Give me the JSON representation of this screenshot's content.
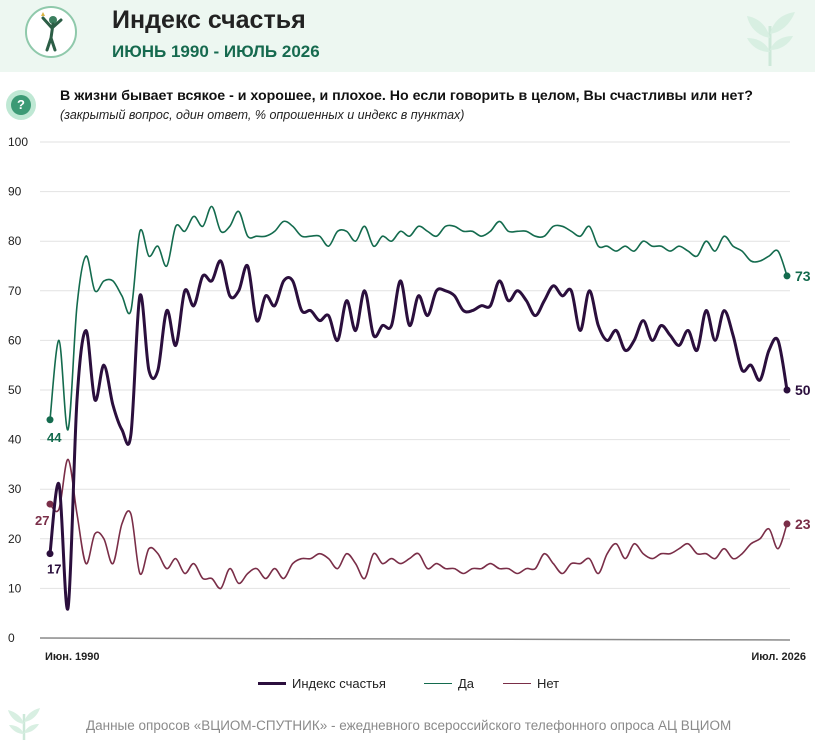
{
  "header": {
    "title": "Индекс счастья",
    "subtitle": "ИЮНЬ 1990 - ИЮЛЬ 2026"
  },
  "question": {
    "icon": "question-icon",
    "text": "В жизни бывает всякое - и хорошее, и плохое. Но если говорить в целом, Вы счастливы  или нет?",
    "note": "(закрытый вопрос, один ответ, % опрошенных и индекс в пунктах)"
  },
  "colors": {
    "index": "#2b0f3d",
    "yes": "#146b4e",
    "no": "#7a2e48",
    "header_bg": "#edf7f1"
  },
  "chart_data": {
    "type": "line",
    "x_start_label": "Июн. 1990",
    "x_end_label": "Июл. 2026",
    "ylim": [
      0,
      100
    ],
    "yticks": [
      0,
      10,
      20,
      30,
      40,
      50,
      60,
      70,
      80,
      90,
      100
    ],
    "grid": true,
    "legend_position": "bottom",
    "series": [
      {
        "name": "Индекс счастья",
        "key": "index",
        "color": "#2b0f3d",
        "start_label": "17",
        "end_label": "50",
        "values": [
          17,
          31,
          6,
          48,
          62,
          48,
          55,
          47,
          42,
          41,
          69,
          54,
          54,
          66,
          59,
          70,
          67,
          73,
          72,
          76,
          69,
          70,
          75,
          64,
          69,
          67,
          72,
          72,
          66,
          66,
          64,
          65,
          60,
          68,
          62,
          70,
          61,
          63,
          63,
          72,
          63,
          69,
          65,
          70,
          70,
          69,
          66,
          66,
          67,
          67,
          72,
          68,
          70,
          68,
          65,
          68,
          71,
          69,
          70,
          62,
          70,
          63,
          60,
          62,
          58,
          60,
          64,
          60,
          63,
          61,
          59,
          62,
          58,
          66,
          60,
          66,
          61,
          54,
          55,
          52,
          58,
          60,
          50
        ]
      },
      {
        "name": "Да",
        "key": "yes",
        "color": "#146b4e",
        "start_label": "44",
        "end_label": "73",
        "values": [
          44,
          60,
          42,
          67,
          77,
          70,
          72,
          72,
          69,
          66,
          82,
          77,
          79,
          75,
          83,
          82,
          85,
          83,
          87,
          82,
          83,
          86,
          81,
          81,
          81,
          82,
          84,
          83,
          81,
          81,
          81,
          79,
          82,
          82,
          80,
          83,
          79,
          81,
          80,
          82,
          81,
          83,
          82,
          81,
          83,
          83,
          82,
          82,
          81,
          82,
          84,
          82,
          82,
          82,
          81,
          81,
          83,
          83,
          82,
          81,
          83,
          79,
          79,
          78,
          79,
          78,
          80,
          79,
          79,
          78,
          79,
          78,
          77,
          80,
          78,
          81,
          79,
          78,
          76,
          76,
          77,
          78,
          73
        ]
      },
      {
        "name": "Нет",
        "key": "no",
        "color": "#7a2e48",
        "start_label": "27",
        "end_label": "23",
        "values": [
          27,
          26,
          36,
          25,
          15,
          21,
          20,
          15,
          23,
          25,
          13,
          18,
          17,
          14,
          16,
          13,
          15,
          12,
          12,
          10,
          14,
          11,
          13,
          14,
          12,
          14,
          12,
          15,
          16,
          16,
          17,
          16,
          14,
          17,
          15,
          12,
          17,
          15,
          16,
          15,
          16,
          17,
          14,
          15,
          14,
          14,
          13,
          14,
          14,
          15,
          14,
          14,
          13,
          14,
          14,
          17,
          15,
          13,
          15,
          15,
          16,
          13,
          17,
          19,
          16,
          19,
          17,
          16,
          17,
          17,
          18,
          19,
          17,
          17,
          16,
          18,
          16,
          17,
          19,
          20,
          22,
          18,
          23
        ]
      }
    ]
  },
  "footer": {
    "text": "Данные опросов «ВЦИОМ-СПУТНИК» - ежедневного всероссийского телефонного опроса АЦ ВЦИОМ"
  }
}
